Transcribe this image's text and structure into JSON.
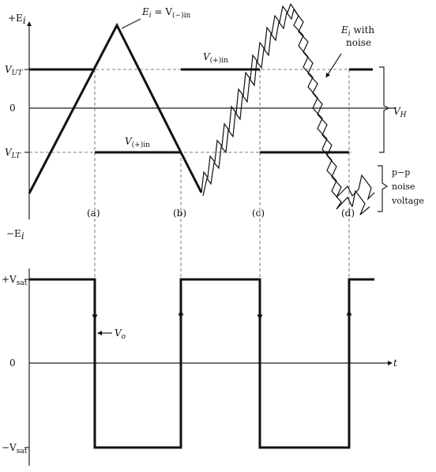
{
  "top_plot": {
    "y_axis_top_label": "+E",
    "y_axis_top_sub": "i",
    "y_axis_bottom_label": "−E",
    "y_axis_bottom_sub": "i",
    "vut_label": "V",
    "vut_sub": "UT",
    "zero_label": "0",
    "vlt_label": "V",
    "vlt_sub": "LT",
    "ei_eq_label": "E",
    "ei_eq_sub": "i",
    "ei_eq_rest": " = V",
    "ei_eq_rest_sub": "(−)in",
    "vplus_upper_label": "V",
    "vplus_upper_sub": "(+)in",
    "vplus_lower_label": "V",
    "vplus_lower_sub": "(+)in",
    "noise_label_1": "E",
    "noise_label_1_sub": "i",
    "noise_label_1_rest": " with",
    "noise_label_2": "noise",
    "vh_label": "V",
    "vh_sub": "H",
    "pp_label_1": "p−p",
    "pp_label_2": "noise",
    "pp_label_3": "voltage",
    "markers": [
      "(a)",
      "(b)",
      "(c)",
      "(d)"
    ]
  },
  "bottom_plot": {
    "vsat_pos_label": "+V",
    "vsat_pos_sub": "sat",
    "zero_label": "0",
    "vsat_neg_label": "−V",
    "vsat_neg_sub": "sat",
    "vo_label": "V",
    "vo_sub": "o",
    "t_label": "t"
  }
}
